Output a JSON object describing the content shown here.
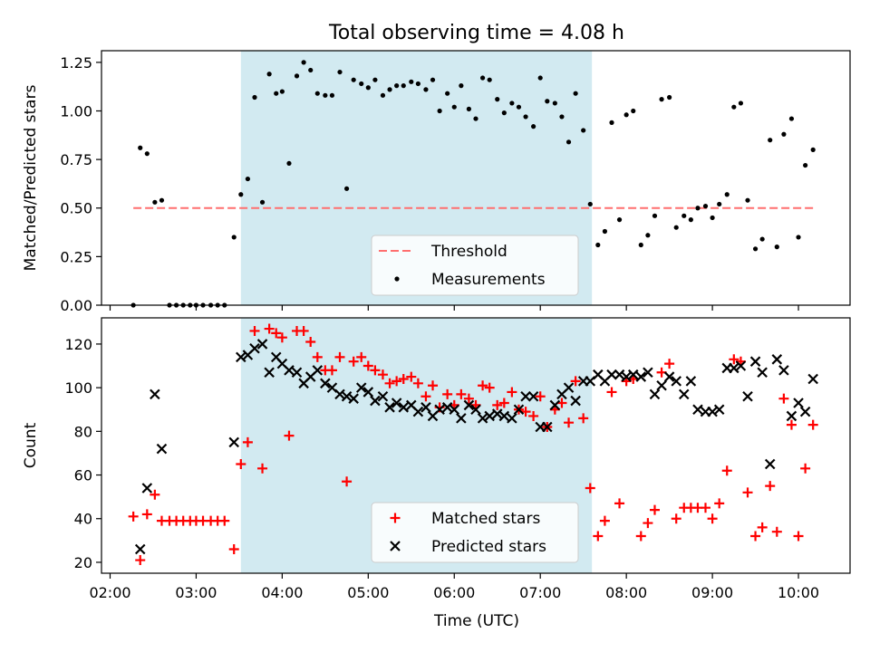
{
  "figure_title": "Total observing time = 4.08 h",
  "colors": {
    "shade": "#add8e6",
    "threshold": "#ff6f6f",
    "measurement": "#000000",
    "matched": "#ff0000",
    "predicted": "#000000"
  },
  "x_tick_labels": [
    "02:00",
    "03:00",
    "04:00",
    "05:00",
    "06:00",
    "07:00",
    "08:00",
    "09:00",
    "10:00"
  ],
  "x_tick_hours": [
    2,
    3,
    4,
    5,
    6,
    7,
    8,
    9,
    10
  ],
  "xlabel": "Time (UTC)",
  "xlim_hours": [
    1.9,
    10.6
  ],
  "chart_data": [
    {
      "type": "scatter",
      "ylabel": "Matched/Predicted stars",
      "ylim": [
        0,
        1.31
      ],
      "yticks": [
        0.0,
        0.25,
        0.5,
        0.75,
        1.0,
        1.25
      ],
      "ytick_labels": [
        "0.00",
        "0.25",
        "0.50",
        "0.75",
        "1.00",
        "1.25"
      ],
      "shaded_interval_hours": [
        3.52,
        7.6
      ],
      "threshold": {
        "name": "Threshold",
        "y": 0.5,
        "x_range_hours": [
          2.27,
          10.2
        ]
      },
      "legend": {
        "position": "lower-center",
        "entries": [
          "Threshold",
          "Measurements"
        ]
      },
      "series": [
        {
          "name": "Measurements",
          "marker": "dot",
          "x_hours": [
            2.27,
            2.35,
            2.43,
            2.52,
            2.6,
            2.69,
            2.77,
            2.85,
            2.93,
            3.0,
            3.08,
            3.17,
            3.25,
            3.33,
            3.44,
            3.52,
            3.6,
            3.68,
            3.77,
            3.85,
            3.93,
            4.0,
            4.08,
            4.17,
            4.25,
            4.33,
            4.41,
            4.5,
            4.58,
            4.67,
            4.75,
            4.83,
            4.92,
            5.0,
            5.08,
            5.17,
            5.25,
            5.33,
            5.41,
            5.5,
            5.58,
            5.67,
            5.75,
            5.83,
            5.92,
            6.0,
            6.08,
            6.17,
            6.25,
            6.33,
            6.41,
            6.5,
            6.58,
            6.67,
            6.75,
            6.83,
            6.92,
            7.0,
            7.08,
            7.17,
            7.25,
            7.33,
            7.41,
            7.5,
            7.58,
            7.67,
            7.75,
            7.83,
            7.92,
            8.0,
            8.08,
            8.17,
            8.25,
            8.33,
            8.41,
            8.5,
            8.58,
            8.67,
            8.75,
            8.83,
            8.92,
            9.0,
            9.08,
            9.17,
            9.25,
            9.33,
            9.41,
            9.5,
            9.58,
            9.67,
            9.75,
            9.83,
            9.92,
            10.0,
            10.08,
            10.17
          ],
          "y": [
            0.0,
            0.81,
            0.78,
            0.53,
            0.54,
            0.0,
            0.0,
            0.0,
            0.0,
            0.0,
            0.0,
            0.0,
            0.0,
            0.0,
            0.35,
            0.57,
            0.65,
            1.07,
            0.53,
            1.19,
            1.09,
            1.1,
            0.73,
            1.18,
            1.25,
            1.21,
            1.09,
            1.08,
            1.08,
            1.2,
            0.6,
            1.16,
            1.14,
            1.12,
            1.16,
            1.08,
            1.11,
            1.13,
            1.13,
            1.15,
            1.14,
            1.11,
            1.16,
            1.0,
            1.09,
            1.02,
            1.13,
            1.01,
            0.96,
            1.17,
            1.16,
            1.06,
            0.99,
            1.04,
            1.02,
            0.97,
            0.92,
            1.17,
            1.05,
            1.04,
            0.97,
            0.84,
            1.09,
            0.9,
            0.52,
            0.31,
            0.38,
            0.94,
            0.44,
            0.98,
            1.0,
            0.31,
            0.36,
            0.46,
            1.06,
            1.07,
            0.4,
            0.46,
            0.44,
            0.5,
            0.51,
            0.45,
            0.52,
            0.57,
            1.02,
            1.04,
            0.54,
            0.29,
            0.34,
            0.85,
            0.3,
            0.88,
            0.96,
            0.35,
            0.72,
            0.8
          ]
        }
      ]
    },
    {
      "type": "scatter",
      "ylabel": "Count",
      "ylim": [
        15,
        132
      ],
      "yticks": [
        20,
        40,
        60,
        80,
        100,
        120
      ],
      "ytick_labels": [
        "20",
        "40",
        "60",
        "80",
        "100",
        "120"
      ],
      "shaded_interval_hours": [
        3.52,
        7.6
      ],
      "legend": {
        "position": "lower-center",
        "entries": [
          "Matched stars",
          "Predicted stars"
        ]
      },
      "series": [
        {
          "name": "Matched stars",
          "marker": "plus",
          "x_hours": [
            2.27,
            2.35,
            2.43,
            2.52,
            2.6,
            2.69,
            2.77,
            2.85,
            2.93,
            3.0,
            3.08,
            3.17,
            3.25,
            3.33,
            3.44,
            3.52,
            3.6,
            3.68,
            3.77,
            3.85,
            3.93,
            4.0,
            4.08,
            4.17,
            4.25,
            4.33,
            4.41,
            4.5,
            4.58,
            4.67,
            4.75,
            4.83,
            4.92,
            5.0,
            5.08,
            5.17,
            5.25,
            5.33,
            5.41,
            5.5,
            5.58,
            5.67,
            5.75,
            5.83,
            5.92,
            6.0,
            6.08,
            6.17,
            6.25,
            6.33,
            6.41,
            6.5,
            6.58,
            6.67,
            6.75,
            6.83,
            6.92,
            7.0,
            7.08,
            7.17,
            7.25,
            7.33,
            7.41,
            7.5,
            7.58,
            7.67,
            7.75,
            7.83,
            7.92,
            8.0,
            8.08,
            8.17,
            8.25,
            8.33,
            8.41,
            8.5,
            8.58,
            8.67,
            8.75,
            8.83,
            8.92,
            9.0,
            9.08,
            9.17,
            9.25,
            9.33,
            9.41,
            9.5,
            9.58,
            9.67,
            9.75,
            9.83,
            9.92,
            10.0,
            10.08,
            10.17
          ],
          "y": [
            41,
            21,
            42,
            51,
            39,
            39,
            39,
            39,
            39,
            39,
            39,
            39,
            39,
            39,
            26,
            65,
            75,
            126,
            63,
            127,
            125,
            123,
            78,
            126,
            126,
            121,
            114,
            108,
            108,
            114,
            57,
            112,
            114,
            110,
            108,
            106,
            102,
            103,
            104,
            105,
            102,
            96,
            101,
            91,
            97,
            92,
            97,
            95,
            92,
            101,
            100,
            92,
            93,
            98,
            90,
            89,
            87,
            96,
            82,
            90,
            93,
            84,
            103,
            86,
            54,
            32,
            39,
            98,
            47,
            103,
            104,
            32,
            38,
            44,
            107,
            111,
            40,
            45,
            45,
            45,
            45,
            40,
            47,
            62,
            113,
            112,
            52,
            32,
            36,
            55,
            34,
            95,
            83,
            32,
            63,
            83
          ]
        },
        {
          "name": "Predicted stars",
          "marker": "x",
          "x_hours": [
            2.35,
            2.43,
            2.52,
            2.6,
            3.44,
            3.52,
            3.6,
            3.68,
            3.77,
            3.85,
            3.93,
            4.0,
            4.08,
            4.17,
            4.25,
            4.33,
            4.41,
            4.5,
            4.58,
            4.67,
            4.75,
            4.83,
            4.92,
            5.0,
            5.08,
            5.17,
            5.25,
            5.33,
            5.41,
            5.5,
            5.58,
            5.67,
            5.75,
            5.83,
            5.92,
            6.0,
            6.08,
            6.17,
            6.25,
            6.33,
            6.41,
            6.5,
            6.58,
            6.67,
            6.75,
            6.83,
            6.92,
            7.0,
            7.08,
            7.17,
            7.25,
            7.33,
            7.41,
            7.5,
            7.58,
            7.67,
            7.75,
            7.83,
            7.92,
            8.0,
            8.08,
            8.17,
            8.25,
            8.33,
            8.41,
            8.5,
            8.58,
            8.67,
            8.75,
            8.83,
            8.92,
            9.0,
            9.08,
            9.17,
            9.25,
            9.33,
            9.41,
            9.5,
            9.58,
            9.67,
            9.75,
            9.83,
            9.92,
            10.0,
            10.08,
            10.17
          ],
          "y": [
            26,
            54,
            97,
            72,
            75,
            114,
            115,
            118,
            120,
            107,
            114,
            111,
            108,
            107,
            102,
            105,
            108,
            102,
            100,
            97,
            96,
            95,
            100,
            98,
            94,
            96,
            91,
            93,
            91,
            92,
            89,
            91,
            87,
            90,
            91,
            90,
            86,
            92,
            90,
            86,
            87,
            88,
            87,
            86,
            90,
            96,
            96,
            82,
            82,
            92,
            97,
            100,
            94,
            103,
            103,
            106,
            103,
            106,
            106,
            105,
            106,
            105,
            107,
            97,
            101,
            105,
            103,
            97,
            103,
            90,
            89,
            89,
            90,
            109,
            109,
            110,
            96,
            112,
            107,
            65,
            113,
            108,
            87,
            93,
            89,
            104
          ]
        }
      ]
    }
  ]
}
